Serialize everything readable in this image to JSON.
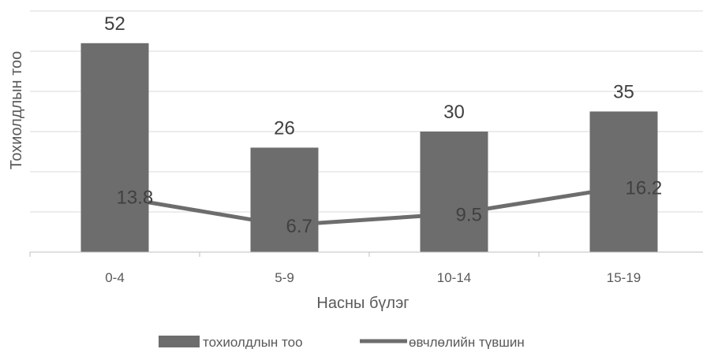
{
  "chart_data": {
    "type": "bar",
    "title": "",
    "xlabel": "Насны бүлэг",
    "ylabel": "Тохиолдлын тоо",
    "categories": [
      "0-4",
      "5-9",
      "10-14",
      "15-19"
    ],
    "ylim": [
      0,
      60
    ],
    "grid": true,
    "legend_position": "bottom",
    "series": [
      {
        "name": "тохиолдлын тоо",
        "kind": "bar",
        "values": [
          52,
          26,
          30,
          35
        ],
        "labels": [
          "52",
          "26",
          "30",
          "35"
        ],
        "color": "#6d6d6d"
      },
      {
        "name": "өвчлөлийн түвшин",
        "kind": "line",
        "values": [
          13.8,
          6.7,
          9.5,
          16.2
        ],
        "labels": [
          "13.8",
          "6.7",
          "9.5",
          "16.2"
        ],
        "color": "#6d6d6d"
      }
    ]
  }
}
